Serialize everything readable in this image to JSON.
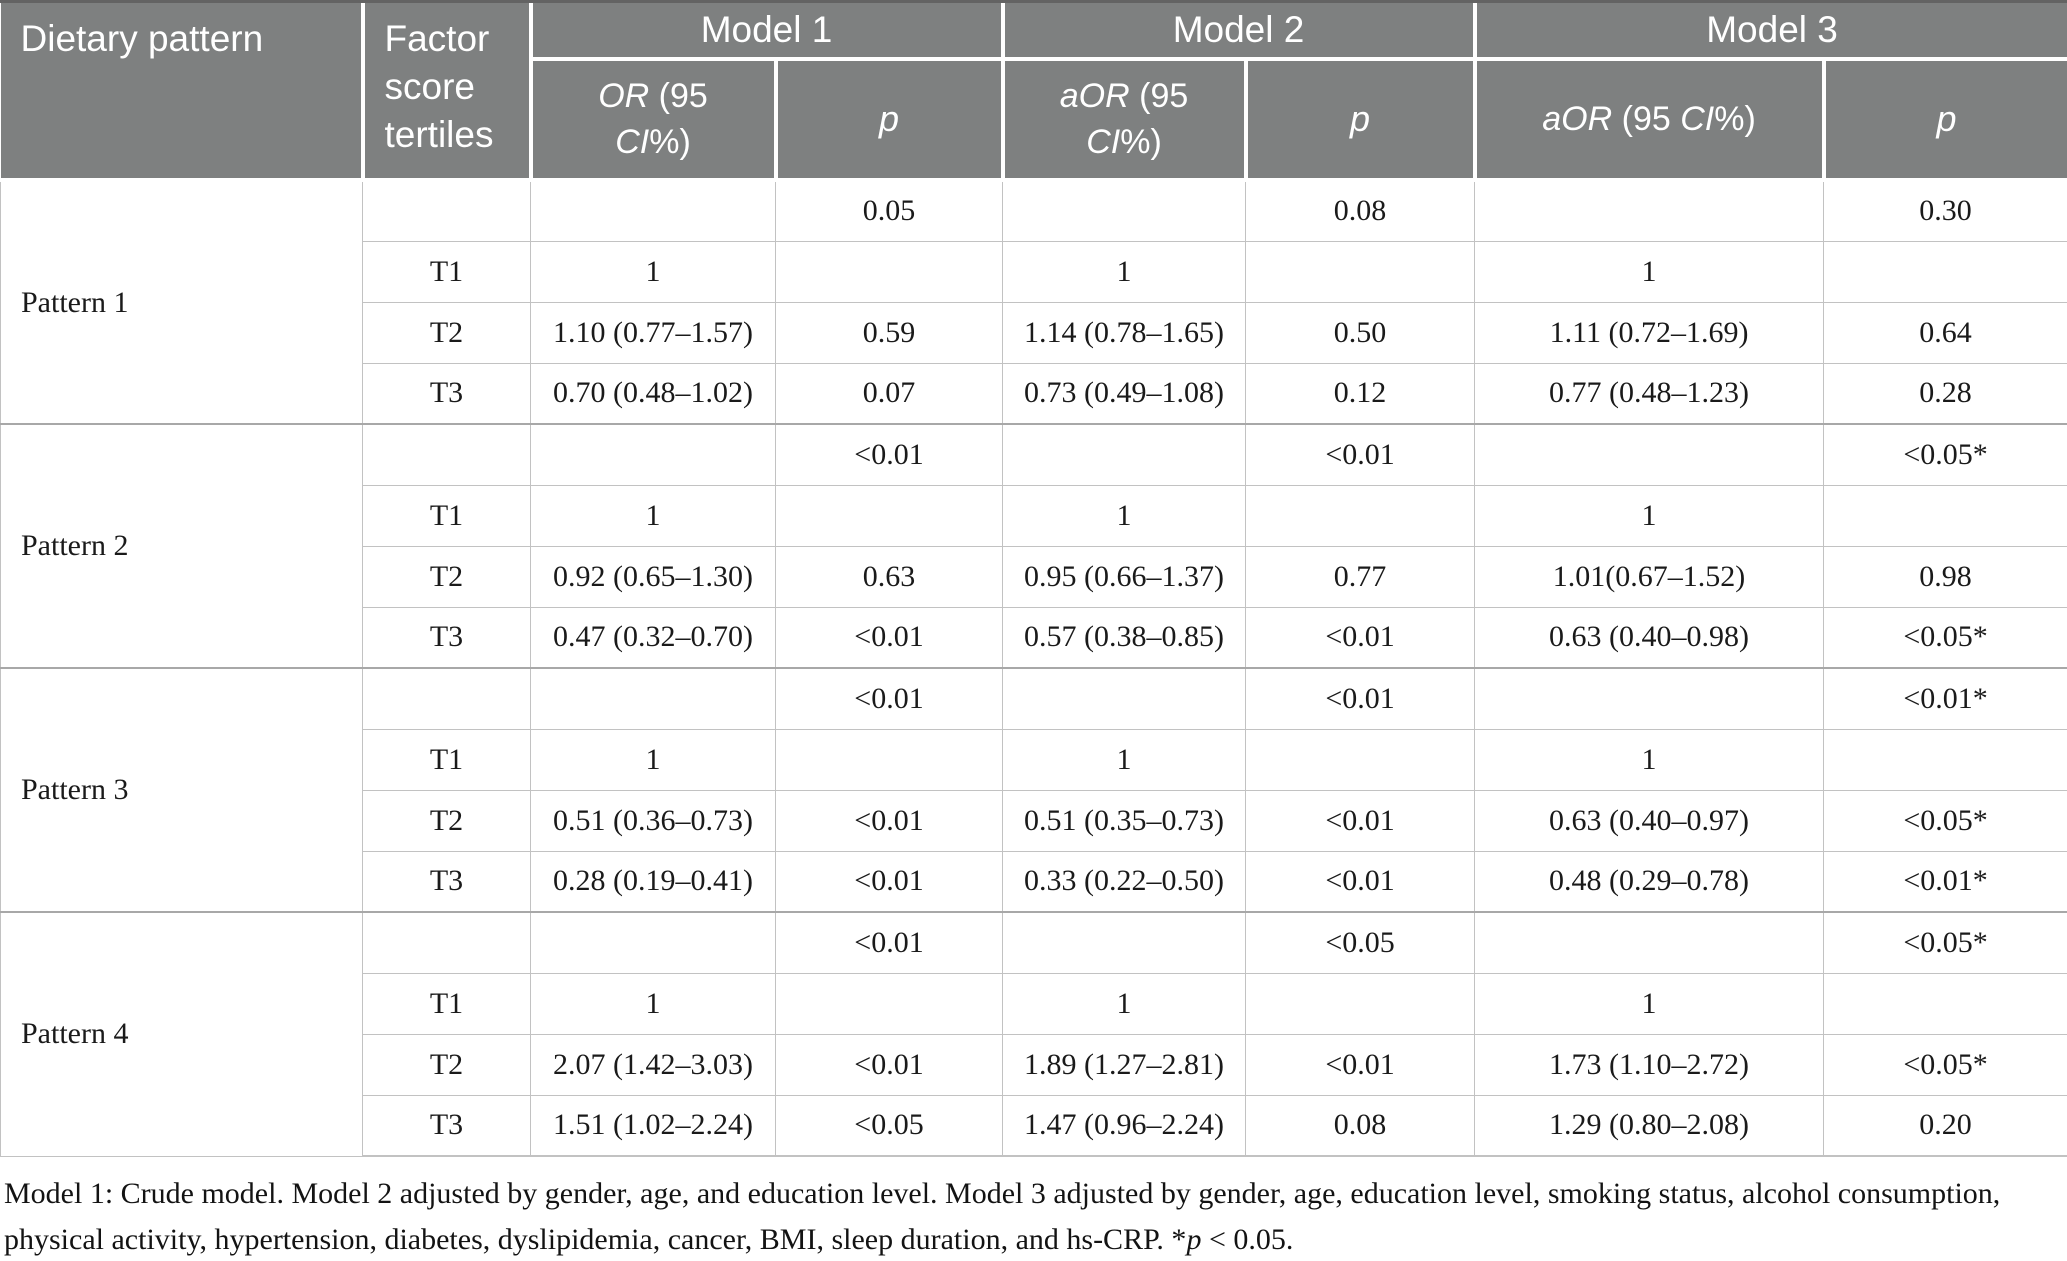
{
  "colors": {
    "header_bg": "#7e8080",
    "grid": "#c2c2c2",
    "group_grid": "#a8a8a8",
    "top_bar": "#636363"
  },
  "header": {
    "dietary_pattern": "Dietary pattern",
    "factor_tertiles": "Factor score tertiles",
    "models": [
      {
        "label": "Model 1",
        "or_a": "OR",
        "or_b": " (95 ",
        "or_c": "CI",
        "or_d": "%)",
        "p": "p"
      },
      {
        "label": "Model 2",
        "or_a": "aOR",
        "or_b": " (95 ",
        "or_c": "CI",
        "or_d": "%)",
        "p": "p"
      },
      {
        "label": "Model 3",
        "or_a": "aOR",
        "or_b": " (95 ",
        "or_c": "CI",
        "or_d": "%)",
        "p": "p"
      }
    ]
  },
  "groups": [
    {
      "pattern": "Pattern 1",
      "rows": [
        {
          "tertile": "",
          "m1_or": "",
          "m1_p": "0.05",
          "m2_or": "",
          "m2_p": "0.08",
          "m3_or": "",
          "m3_p": "0.30"
        },
        {
          "tertile": "T1",
          "m1_or": "1",
          "m1_p": "",
          "m2_or": "1",
          "m2_p": "",
          "m3_or": "1",
          "m3_p": ""
        },
        {
          "tertile": "T2",
          "m1_or": "1.10 (0.77–1.57)",
          "m1_p": "0.59",
          "m2_or": "1.14 (0.78–1.65)",
          "m2_p": "0.50",
          "m3_or": "1.11 (0.72–1.69)",
          "m3_p": "0.64"
        },
        {
          "tertile": "T3",
          "m1_or": "0.70 (0.48–1.02)",
          "m1_p": "0.07",
          "m2_or": "0.73 (0.49–1.08)",
          "m2_p": "0.12",
          "m3_or": "0.77 (0.48–1.23)",
          "m3_p": "0.28"
        }
      ]
    },
    {
      "pattern": "Pattern 2",
      "rows": [
        {
          "tertile": "",
          "m1_or": "",
          "m1_p": "<0.01",
          "m2_or": "",
          "m2_p": "<0.01",
          "m3_or": "",
          "m3_p": "<0.05*"
        },
        {
          "tertile": "T1",
          "m1_or": "1",
          "m1_p": "",
          "m2_or": "1",
          "m2_p": "",
          "m3_or": "1",
          "m3_p": ""
        },
        {
          "tertile": "T2",
          "m1_or": "0.92 (0.65–1.30)",
          "m1_p": "0.63",
          "m2_or": "0.95 (0.66–1.37)",
          "m2_p": "0.77",
          "m3_or": "1.01(0.67–1.52)",
          "m3_p": "0.98"
        },
        {
          "tertile": "T3",
          "m1_or": "0.47 (0.32–0.70)",
          "m1_p": "<0.01",
          "m2_or": "0.57 (0.38–0.85)",
          "m2_p": "<0.01",
          "m3_or": "0.63 (0.40–0.98)",
          "m3_p": "<0.05*"
        }
      ]
    },
    {
      "pattern": "Pattern 3",
      "rows": [
        {
          "tertile": "",
          "m1_or": "",
          "m1_p": "<0.01",
          "m2_or": "",
          "m2_p": "<0.01",
          "m3_or": "",
          "m3_p": "<0.01*"
        },
        {
          "tertile": "T1",
          "m1_or": "1",
          "m1_p": "",
          "m2_or": "1",
          "m2_p": "",
          "m3_or": "1",
          "m3_p": ""
        },
        {
          "tertile": "T2",
          "m1_or": "0.51 (0.36–0.73)",
          "m1_p": "<0.01",
          "m2_or": "0.51 (0.35–0.73)",
          "m2_p": "<0.01",
          "m3_or": "0.63 (0.40–0.97)",
          "m3_p": "<0.05*"
        },
        {
          "tertile": "T3",
          "m1_or": "0.28 (0.19–0.41)",
          "m1_p": "<0.01",
          "m2_or": "0.33 (0.22–0.50)",
          "m2_p": "<0.01",
          "m3_or": "0.48 (0.29–0.78)",
          "m3_p": "<0.01*"
        }
      ]
    },
    {
      "pattern": "Pattern 4",
      "rows": [
        {
          "tertile": "",
          "m1_or": "",
          "m1_p": "<0.01",
          "m2_or": "",
          "m2_p": "<0.05",
          "m3_or": "",
          "m3_p": "<0.05*"
        },
        {
          "tertile": "T1",
          "m1_or": "1",
          "m1_p": "",
          "m2_or": "1",
          "m2_p": "",
          "m3_or": "1",
          "m3_p": ""
        },
        {
          "tertile": "T2",
          "m1_or": "2.07 (1.42–3.03)",
          "m1_p": "<0.01",
          "m2_or": "1.89 (1.27–2.81)",
          "m2_p": "<0.01",
          "m3_or": "1.73 (1.10–2.72)",
          "m3_p": "<0.05*"
        },
        {
          "tertile": "T3",
          "m1_or": "1.51 (1.02–2.24)",
          "m1_p": "<0.05",
          "m2_or": "1.47 (0.96–2.24)",
          "m2_p": "0.08",
          "m3_or": "1.29 (0.80–2.08)",
          "m3_p": "0.20"
        }
      ]
    }
  ],
  "footnote": {
    "text": "Model 1: Crude model. Model 2 adjusted by gender, age, and education level. Model 3 adjusted by gender, age, education level, smoking status, alcohol consumption, physical activity, hypertension, diabetes, dyslipidemia, cancer, BMI, sleep duration, and hs-CRP. *",
    "p_italic": "p",
    "tail": " < 0.05."
  }
}
